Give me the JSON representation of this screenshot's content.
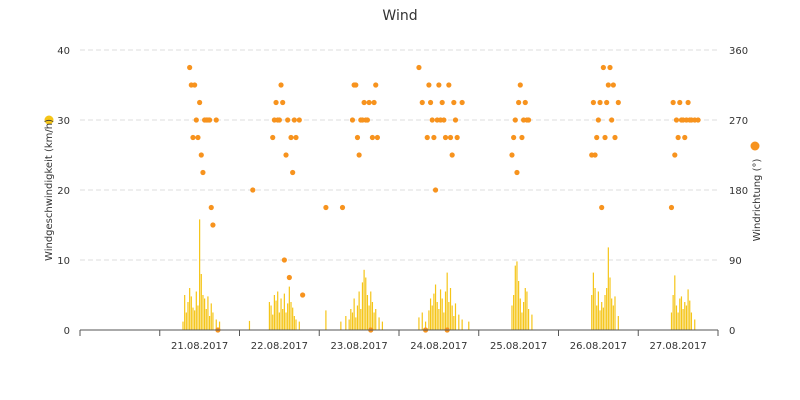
{
  "chart_data": {
    "type": "combo",
    "title": "Wind",
    "colors": {
      "speed": "#f5c518",
      "direction": "#f7931e",
      "grid": "#dddddd",
      "axis": "#555555"
    },
    "grid": true,
    "x_axis": {
      "start": "20.08.2017",
      "end": "28.08.2017",
      "tick_labels": [
        "21.08.2017",
        "22.08.2017",
        "23.08.2017",
        "24.08.2017",
        "25.08.2017",
        "26.08.2017",
        "27.08.2017"
      ]
    },
    "y_axis_left": {
      "label": "Windgeschwindigkeit (km/h)",
      "ylim": [
        0,
        40
      ],
      "ticks": [
        "0",
        "10",
        "20",
        "30",
        "40"
      ]
    },
    "y_axis_right": {
      "label": "Windrichtung (°)",
      "ylim": [
        0,
        360
      ],
      "ticks": [
        "0",
        "90",
        "180",
        "270",
        "360"
      ]
    },
    "series": [
      {
        "type": "column",
        "axis": "left",
        "unit": "km/h",
        "points": [
          [
            "2017-08-21 07:00",
            1.2
          ],
          [
            "2017-08-21 07:30",
            5.0
          ],
          [
            "2017-08-21 08:00",
            2.5
          ],
          [
            "2017-08-21 08:30",
            4.0
          ],
          [
            "2017-08-21 09:00",
            6.0
          ],
          [
            "2017-08-21 09:30",
            4.8
          ],
          [
            "2017-08-21 10:00",
            3.2
          ],
          [
            "2017-08-21 10:30",
            2.8
          ],
          [
            "2017-08-21 11:00",
            5.5
          ],
          [
            "2017-08-21 11:30",
            3.5
          ],
          [
            "2017-08-21 12:00",
            15.8
          ],
          [
            "2017-08-21 12:30",
            8.0
          ],
          [
            "2017-08-21 13:00",
            5.0
          ],
          [
            "2017-08-21 13:30",
            4.5
          ],
          [
            "2017-08-21 14:00",
            3.0
          ],
          [
            "2017-08-21 14:30",
            4.8
          ],
          [
            "2017-08-21 15:00",
            2.0
          ],
          [
            "2017-08-21 15:30",
            3.8
          ],
          [
            "2017-08-21 16:00",
            2.5
          ],
          [
            "2017-08-21 17:00",
            1.5
          ],
          [
            "2017-08-21 18:00",
            1.2
          ],
          [
            "2017-08-22 03:00",
            1.3
          ],
          [
            "2017-08-22 09:00",
            4.0
          ],
          [
            "2017-08-22 09:30",
            3.5
          ],
          [
            "2017-08-22 10:00",
            2.2
          ],
          [
            "2017-08-22 10:30",
            5.0
          ],
          [
            "2017-08-22 11:00",
            4.2
          ],
          [
            "2017-08-22 11:30",
            5.5
          ],
          [
            "2017-08-22 12:00",
            2.5
          ],
          [
            "2017-08-22 12:30",
            4.5
          ],
          [
            "2017-08-22 13:00",
            3.0
          ],
          [
            "2017-08-22 13:30",
            5.2
          ],
          [
            "2017-08-22 14:00",
            2.5
          ],
          [
            "2017-08-22 14:30",
            3.8
          ],
          [
            "2017-08-22 15:00",
            6.2
          ],
          [
            "2017-08-22 15:30",
            4.0
          ],
          [
            "2017-08-22 16:00",
            3.2
          ],
          [
            "2017-08-22 16:30",
            2.0
          ],
          [
            "2017-08-22 17:00",
            1.5
          ],
          [
            "2017-08-22 18:00",
            1.2
          ],
          [
            "2017-08-23 02:00",
            2.8
          ],
          [
            "2017-08-23 06:30",
            1.2
          ],
          [
            "2017-08-23 08:00",
            2.0
          ],
          [
            "2017-08-23 09:00",
            1.5
          ],
          [
            "2017-08-23 09:30",
            3.0
          ],
          [
            "2017-08-23 10:00",
            2.5
          ],
          [
            "2017-08-23 10:30",
            4.5
          ],
          [
            "2017-08-23 11:00",
            1.8
          ],
          [
            "2017-08-23 11:30",
            3.5
          ],
          [
            "2017-08-23 12:00",
            5.5
          ],
          [
            "2017-08-23 12:30",
            3.0
          ],
          [
            "2017-08-23 13:00",
            6.8
          ],
          [
            "2017-08-23 13:30",
            8.6
          ],
          [
            "2017-08-23 14:00",
            7.5
          ],
          [
            "2017-08-23 14:30",
            5.0
          ],
          [
            "2017-08-23 15:00",
            3.5
          ],
          [
            "2017-08-23 15:30",
            5.5
          ],
          [
            "2017-08-23 16:00",
            4.0
          ],
          [
            "2017-08-23 16:30",
            2.5
          ],
          [
            "2017-08-23 17:00",
            3.0
          ],
          [
            "2017-08-23 18:00",
            1.8
          ],
          [
            "2017-08-23 19:00",
            1.2
          ],
          [
            "2017-08-24 06:00",
            1.8
          ],
          [
            "2017-08-24 07:00",
            2.5
          ],
          [
            "2017-08-24 08:00",
            1.2
          ],
          [
            "2017-08-24 09:00",
            2.8
          ],
          [
            "2017-08-24 09:30",
            4.5
          ],
          [
            "2017-08-24 10:00",
            3.5
          ],
          [
            "2017-08-24 10:30",
            5.2
          ],
          [
            "2017-08-24 11:00",
            6.5
          ],
          [
            "2017-08-24 11:30",
            4.0
          ],
          [
            "2017-08-24 12:00",
            3.0
          ],
          [
            "2017-08-24 12:30",
            5.8
          ],
          [
            "2017-08-24 13:00",
            4.5
          ],
          [
            "2017-08-24 13:30",
            2.5
          ],
          [
            "2017-08-24 14:00",
            5.5
          ],
          [
            "2017-08-24 14:30",
            8.2
          ],
          [
            "2017-08-24 15:00",
            4.0
          ],
          [
            "2017-08-24 15:30",
            6.0
          ],
          [
            "2017-08-24 16:00",
            3.5
          ],
          [
            "2017-08-24 16:30",
            2.0
          ],
          [
            "2017-08-24 17:00",
            3.8
          ],
          [
            "2017-08-24 18:00",
            2.2
          ],
          [
            "2017-08-24 19:00",
            1.5
          ],
          [
            "2017-08-24 21:00",
            1.2
          ],
          [
            "2017-08-25 10:00",
            3.5
          ],
          [
            "2017-08-25 10:30",
            5.0
          ],
          [
            "2017-08-25 11:00",
            9.2
          ],
          [
            "2017-08-25 11:30",
            9.8
          ],
          [
            "2017-08-25 12:00",
            7.0
          ],
          [
            "2017-08-25 12:30",
            4.5
          ],
          [
            "2017-08-25 13:00",
            2.5
          ],
          [
            "2017-08-25 13:30",
            4.0
          ],
          [
            "2017-08-25 14:00",
            6.0
          ],
          [
            "2017-08-25 14:30",
            5.5
          ],
          [
            "2017-08-25 15:00",
            3.0
          ],
          [
            "2017-08-25 16:00",
            2.2
          ],
          [
            "2017-08-26 10:00",
            5.0
          ],
          [
            "2017-08-26 10:30",
            8.2
          ],
          [
            "2017-08-26 11:00",
            6.0
          ],
          [
            "2017-08-26 11:30",
            3.5
          ],
          [
            "2017-08-26 12:00",
            5.5
          ],
          [
            "2017-08-26 12:30",
            2.8
          ],
          [
            "2017-08-26 13:00",
            4.0
          ],
          [
            "2017-08-26 13:30",
            3.2
          ],
          [
            "2017-08-26 14:00",
            5.0
          ],
          [
            "2017-08-26 14:30",
            6.0
          ],
          [
            "2017-08-26 15:00",
            11.8
          ],
          [
            "2017-08-26 15:30",
            7.5
          ],
          [
            "2017-08-26 16:00",
            4.5
          ],
          [
            "2017-08-26 16:30",
            3.5
          ],
          [
            "2017-08-26 17:00",
            4.8
          ],
          [
            "2017-08-26 18:00",
            2.0
          ],
          [
            "2017-08-27 10:00",
            2.5
          ],
          [
            "2017-08-27 10:30",
            5.0
          ],
          [
            "2017-08-27 11:00",
            7.8
          ],
          [
            "2017-08-27 11:30",
            3.5
          ],
          [
            "2017-08-27 12:00",
            2.5
          ],
          [
            "2017-08-27 12:30",
            4.5
          ],
          [
            "2017-08-27 13:00",
            4.8
          ],
          [
            "2017-08-27 13:30",
            3.0
          ],
          [
            "2017-08-27 14:00",
            4.0
          ],
          [
            "2017-08-27 14:30",
            3.5
          ],
          [
            "2017-08-27 15:00",
            5.8
          ],
          [
            "2017-08-27 15:30",
            4.2
          ],
          [
            "2017-08-27 16:00",
            2.5
          ],
          [
            "2017-08-27 17:00",
            1.5
          ]
        ]
      },
      {
        "type": "scatter",
        "axis": "right",
        "unit": "°",
        "points": [
          [
            "2017-08-21 09:00",
            337.5
          ],
          [
            "2017-08-21 09:30",
            315
          ],
          [
            "2017-08-21 10:00",
            247.5
          ],
          [
            "2017-08-21 10:30",
            315
          ],
          [
            "2017-08-21 11:00",
            270
          ],
          [
            "2017-08-21 11:30",
            247.5
          ],
          [
            "2017-08-21 12:00",
            292.5
          ],
          [
            "2017-08-21 12:30",
            225
          ],
          [
            "2017-08-21 13:00",
            202.5
          ],
          [
            "2017-08-21 13:30",
            270
          ],
          [
            "2017-08-21 14:00",
            270
          ],
          [
            "2017-08-21 14:30",
            270
          ],
          [
            "2017-08-21 15:00",
            270
          ],
          [
            "2017-08-21 15:30",
            157.5
          ],
          [
            "2017-08-21 16:00",
            135
          ],
          [
            "2017-08-21 17:00",
            270
          ],
          [
            "2017-08-21 17:30",
            0
          ],
          [
            "2017-08-22 04:00",
            180
          ],
          [
            "2017-08-22 10:00",
            247.5
          ],
          [
            "2017-08-22 10:30",
            270
          ],
          [
            "2017-08-22 11:00",
            292.5
          ],
          [
            "2017-08-22 11:30",
            270
          ],
          [
            "2017-08-22 12:00",
            270
          ],
          [
            "2017-08-22 12:30",
            315
          ],
          [
            "2017-08-22 13:00",
            292.5
          ],
          [
            "2017-08-22 13:30",
            90
          ],
          [
            "2017-08-22 14:00",
            225
          ],
          [
            "2017-08-22 14:30",
            270
          ],
          [
            "2017-08-22 15:00",
            67.5
          ],
          [
            "2017-08-22 15:30",
            247.5
          ],
          [
            "2017-08-22 16:00",
            202.5
          ],
          [
            "2017-08-22 16:30",
            270
          ],
          [
            "2017-08-22 17:00",
            247.5
          ],
          [
            "2017-08-22 18:00",
            270
          ],
          [
            "2017-08-22 19:00",
            45
          ],
          [
            "2017-08-23 02:00",
            157.5
          ],
          [
            "2017-08-23 07:00",
            157.5
          ],
          [
            "2017-08-23 10:00",
            270
          ],
          [
            "2017-08-23 10:30",
            315
          ],
          [
            "2017-08-23 11:00",
            315
          ],
          [
            "2017-08-23 11:30",
            247.5
          ],
          [
            "2017-08-23 12:00",
            225
          ],
          [
            "2017-08-23 12:30",
            270
          ],
          [
            "2017-08-23 13:00",
            270
          ],
          [
            "2017-08-23 13:30",
            292.5
          ],
          [
            "2017-08-23 14:00",
            270
          ],
          [
            "2017-08-23 14:30",
            270
          ],
          [
            "2017-08-23 15:00",
            292.5
          ],
          [
            "2017-08-23 15:30",
            0
          ],
          [
            "2017-08-23 16:00",
            247.5
          ],
          [
            "2017-08-23 16:30",
            292.5
          ],
          [
            "2017-08-23 17:00",
            315
          ],
          [
            "2017-08-23 17:30",
            247.5
          ],
          [
            "2017-08-24 06:00",
            337.5
          ],
          [
            "2017-08-24 07:00",
            292.5
          ],
          [
            "2017-08-24 08:00",
            0
          ],
          [
            "2017-08-24 08:30",
            247.5
          ],
          [
            "2017-08-24 09:00",
            315
          ],
          [
            "2017-08-24 09:30",
            292.5
          ],
          [
            "2017-08-24 10:00",
            270
          ],
          [
            "2017-08-24 10:30",
            247.5
          ],
          [
            "2017-08-24 11:00",
            180
          ],
          [
            "2017-08-24 11:30",
            270
          ],
          [
            "2017-08-24 12:00",
            315
          ],
          [
            "2017-08-24 12:30",
            270
          ],
          [
            "2017-08-24 13:00",
            292.5
          ],
          [
            "2017-08-24 13:30",
            270
          ],
          [
            "2017-08-24 14:00",
            247.5
          ],
          [
            "2017-08-24 14:30",
            0
          ],
          [
            "2017-08-24 15:00",
            315
          ],
          [
            "2017-08-24 15:30",
            247.5
          ],
          [
            "2017-08-24 16:00",
            225
          ],
          [
            "2017-08-24 16:30",
            292.5
          ],
          [
            "2017-08-24 17:00",
            270
          ],
          [
            "2017-08-24 17:30",
            247.5
          ],
          [
            "2017-08-24 19:00",
            292.5
          ],
          [
            "2017-08-25 10:00",
            225
          ],
          [
            "2017-08-25 10:30",
            247.5
          ],
          [
            "2017-08-25 11:00",
            270
          ],
          [
            "2017-08-25 11:30",
            202.5
          ],
          [
            "2017-08-25 12:00",
            292.5
          ],
          [
            "2017-08-25 12:30",
            315
          ],
          [
            "2017-08-25 13:00",
            247.5
          ],
          [
            "2017-08-25 13:30",
            270
          ],
          [
            "2017-08-25 14:00",
            292.5
          ],
          [
            "2017-08-25 14:30",
            270
          ],
          [
            "2017-08-25 15:00",
            270
          ],
          [
            "2017-08-26 10:00",
            225
          ],
          [
            "2017-08-26 10:30",
            292.5
          ],
          [
            "2017-08-26 11:00",
            225
          ],
          [
            "2017-08-26 11:30",
            247.5
          ],
          [
            "2017-08-26 12:00",
            270
          ],
          [
            "2017-08-26 12:30",
            292.5
          ],
          [
            "2017-08-26 13:00",
            157.5
          ],
          [
            "2017-08-26 13:30",
            337.5
          ],
          [
            "2017-08-26 14:00",
            247.5
          ],
          [
            "2017-08-26 14:30",
            292.5
          ],
          [
            "2017-08-26 15:00",
            315
          ],
          [
            "2017-08-26 15:30",
            337.5
          ],
          [
            "2017-08-26 16:00",
            270
          ],
          [
            "2017-08-26 16:30",
            315
          ],
          [
            "2017-08-26 17:00",
            247.5
          ],
          [
            "2017-08-26 18:00",
            292.5
          ],
          [
            "2017-08-27 10:00",
            157.5
          ],
          [
            "2017-08-27 10:30",
            292.5
          ],
          [
            "2017-08-27 11:00",
            225
          ],
          [
            "2017-08-27 11:30",
            270
          ],
          [
            "2017-08-27 12:00",
            247.5
          ],
          [
            "2017-08-27 12:30",
            292.5
          ],
          [
            "2017-08-27 13:00",
            270
          ],
          [
            "2017-08-27 13:30",
            270
          ],
          [
            "2017-08-27 14:00",
            247.5
          ],
          [
            "2017-08-27 14:30",
            270
          ],
          [
            "2017-08-27 15:00",
            292.5
          ],
          [
            "2017-08-27 15:30",
            270
          ],
          [
            "2017-08-27 16:00",
            270
          ],
          [
            "2017-08-27 17:00",
            270
          ],
          [
            "2017-08-27 18:00",
            270
          ]
        ]
      }
    ]
  }
}
